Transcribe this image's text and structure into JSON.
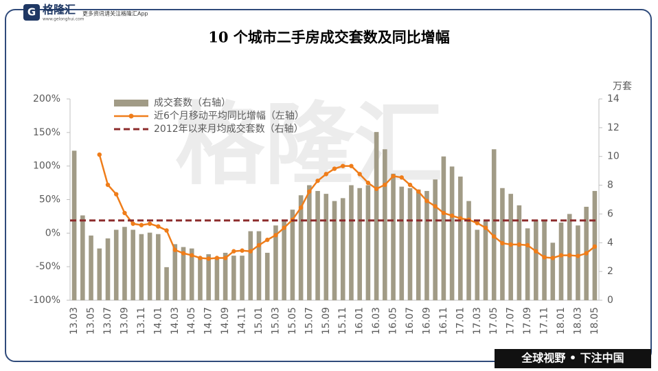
{
  "header": {
    "logo": "格隆汇",
    "site": "www.gelonghui.com",
    "slogan": "更多资讯请关注格隆汇App"
  },
  "footer": "全球视野 • 下注中国",
  "watermark": "格隆汇",
  "chart_data": {
    "type": "bar-line",
    "title": "10 个城市二手房成交套数及同比增幅",
    "y2_unit": "万套",
    "categories": [
      "13.03",
      null,
      "13.05",
      null,
      "13.07",
      null,
      "13.09",
      null,
      "13.11",
      null,
      "14.01",
      null,
      "14.03",
      null,
      "14.05",
      null,
      "14.07",
      null,
      "14.09",
      null,
      "14.11",
      null,
      "15.01",
      null,
      "15.03",
      null,
      "15.05",
      null,
      "15.07",
      null,
      "15.09",
      null,
      "15.11",
      null,
      "16.01",
      null,
      "16.03",
      null,
      "16.05",
      null,
      "16.07",
      null,
      "16.09",
      null,
      "16.11",
      null,
      "17.01",
      null,
      "17.03",
      null,
      "17.05",
      null,
      "17.07",
      null,
      "17.09",
      null,
      "17.11",
      null,
      "18.01",
      null,
      "18.03",
      null,
      "18.05"
    ],
    "series": [
      {
        "name": "成交套数（右轴）",
        "type": "bar",
        "axis": "y2",
        "color": "#a19b86",
        "values": [
          10.4,
          5.9,
          4.5,
          3.6,
          4.3,
          4.9,
          5.1,
          4.9,
          4.6,
          4.7,
          4.6,
          2.3,
          3.9,
          3.7,
          3.6,
          3.0,
          3.2,
          3.0,
          3.3,
          3.1,
          3.1,
          4.8,
          4.8,
          3.3,
          5.2,
          5.6,
          6.3,
          7.3,
          8.0,
          7.6,
          7.4,
          6.9,
          7.1,
          8.0,
          7.8,
          8.0,
          11.7,
          10.5,
          8.8,
          7.9,
          7.8,
          7.7,
          7.6,
          8.4,
          10.0,
          9.3,
          8.6,
          6.9,
          4.9,
          5.5,
          10.5,
          7.8,
          7.4,
          6.6,
          5.0,
          5.6,
          5.5,
          4.0,
          5.4,
          6.0,
          5.2,
          6.5,
          7.6
        ]
      },
      {
        "name": "近6个月移动平均同比增幅（左轴）",
        "type": "line",
        "axis": "y",
        "color": "#ef7d1a",
        "values": [
          null,
          null,
          null,
          117,
          72,
          58,
          30,
          14,
          12,
          14,
          10,
          4,
          -25,
          -30,
          -33,
          -37,
          -38,
          -37,
          -37,
          -27,
          -26,
          -27,
          -18,
          -10,
          -3,
          8,
          20,
          38,
          62,
          78,
          88,
          96,
          100,
          100,
          88,
          75,
          66,
          72,
          85,
          83,
          72,
          62,
          48,
          40,
          30,
          26,
          22,
          20,
          15,
          8,
          -5,
          -15,
          -17,
          -17,
          -18,
          -27,
          -36,
          -37,
          -33,
          -33,
          -34,
          -30,
          -20
        ]
      }
    ],
    "reference_line": {
      "name": "2012年以来月均成交套数（右轴）",
      "axis": "y2",
      "color": "#8c2b2b",
      "value": 5.55,
      "dashed": true
    },
    "ylim": [
      -100,
      200
    ],
    "yticks": [
      {
        "value": -100,
        "label": "-100%"
      },
      {
        "value": -50,
        "label": "-50%"
      },
      {
        "value": 0,
        "label": "0%"
      },
      {
        "value": 50,
        "label": "50%"
      },
      {
        "value": 100,
        "label": "100%"
      },
      {
        "value": 150,
        "label": "150%"
      },
      {
        "value": 200,
        "label": "200%"
      }
    ],
    "y2lim": [
      0,
      14
    ],
    "y2ticks": [
      0,
      2,
      4,
      6,
      8,
      10,
      12,
      14
    ],
    "legend": "top-left"
  }
}
